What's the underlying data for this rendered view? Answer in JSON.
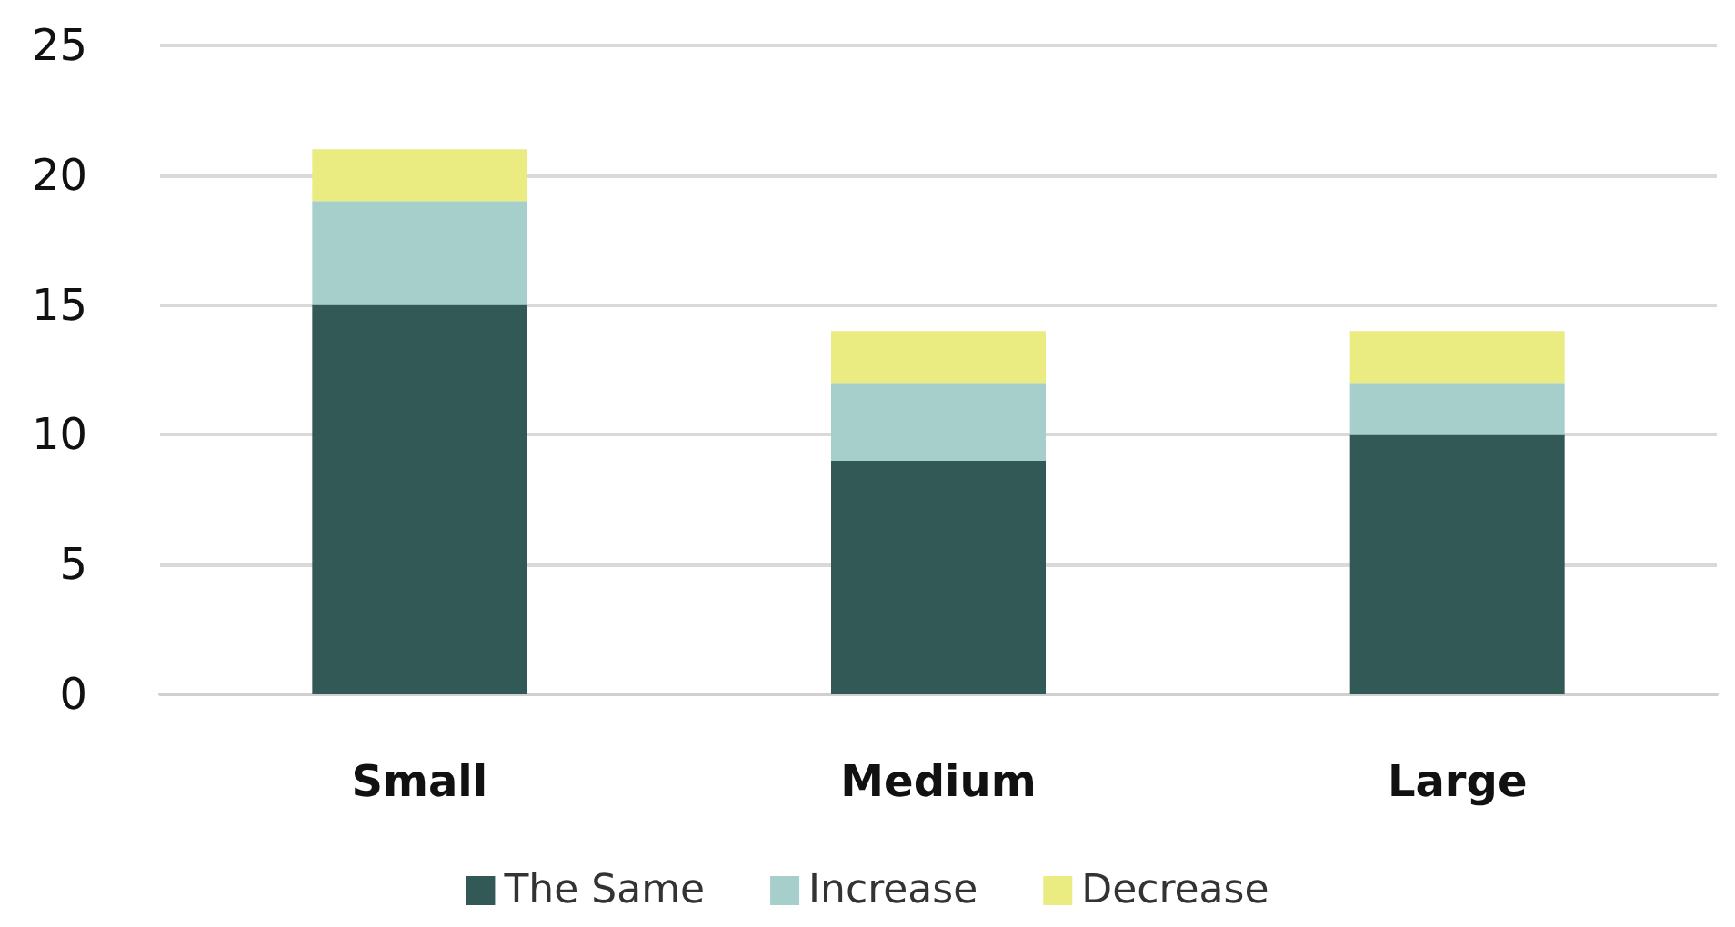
{
  "chart_data": {
    "type": "bar",
    "categories": [
      "Small",
      "Medium",
      "Large"
    ],
    "series": [
      {
        "name": "The Same",
        "color": "#335956",
        "values": [
          15,
          9,
          10
        ]
      },
      {
        "name": "Increase",
        "color": "#a6cecb",
        "values": [
          4,
          3,
          2
        ]
      },
      {
        "name": "Decrease",
        "color": "#eaeb80",
        "values": [
          2,
          2,
          2
        ]
      }
    ],
    "stacked": true,
    "ylim": [
      0,
      25
    ],
    "yticks": [
      0,
      5,
      10,
      15,
      20,
      25
    ],
    "grid": "y",
    "legend": "bottom"
  }
}
